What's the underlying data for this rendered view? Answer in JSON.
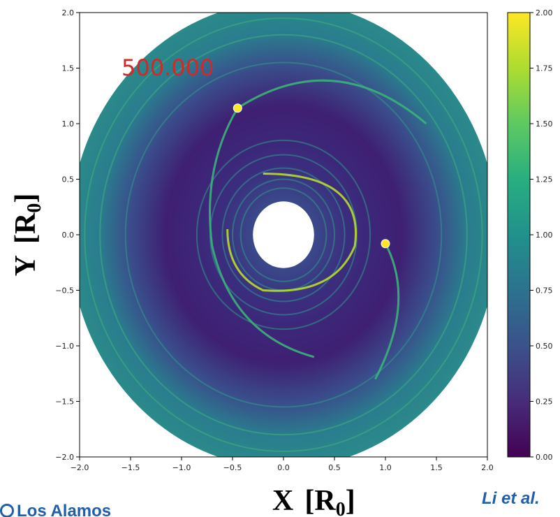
{
  "chart_data": {
    "type": "heatmap",
    "title": "",
    "time_label": "500.000",
    "xlabel": "X",
    "xlabel_unit": "R",
    "xlabel_sub": "0",
    "ylabel": "Y",
    "ylabel_unit": "R",
    "ylabel_sub": "0",
    "xlim": [
      -2.0,
      2.0
    ],
    "ylim": [
      -2.0,
      2.0
    ],
    "xticks": [
      "−2.0",
      "−1.5",
      "−1.0",
      "−0.5",
      "0.0",
      "0.5",
      "1.0",
      "1.5",
      "2.0"
    ],
    "yticks": [
      "2.0",
      "1.5",
      "1.0",
      "0.5",
      "0.0",
      "−0.5",
      "−1.0",
      "−1.5",
      "−2.0"
    ],
    "colorbar": {
      "colormap": "viridis",
      "range": [
        0.0,
        2.0
      ],
      "ticks": [
        "2.00",
        "1.75",
        "1.50",
        "1.25",
        "1.00",
        "0.75",
        "0.50",
        "0.25",
        "0.00"
      ]
    },
    "disk": {
      "inner_radius": 0.3,
      "outer_radius": 2.1
    },
    "planets": [
      {
        "x": -0.45,
        "y": 1.14
      },
      {
        "x": 1.0,
        "y": -0.08
      }
    ],
    "grid": false
  },
  "credit": "Li et al.",
  "logo_text": "Los Alamos",
  "colors": {
    "credit": "#1f5fae",
    "time_label": "#d62728"
  }
}
